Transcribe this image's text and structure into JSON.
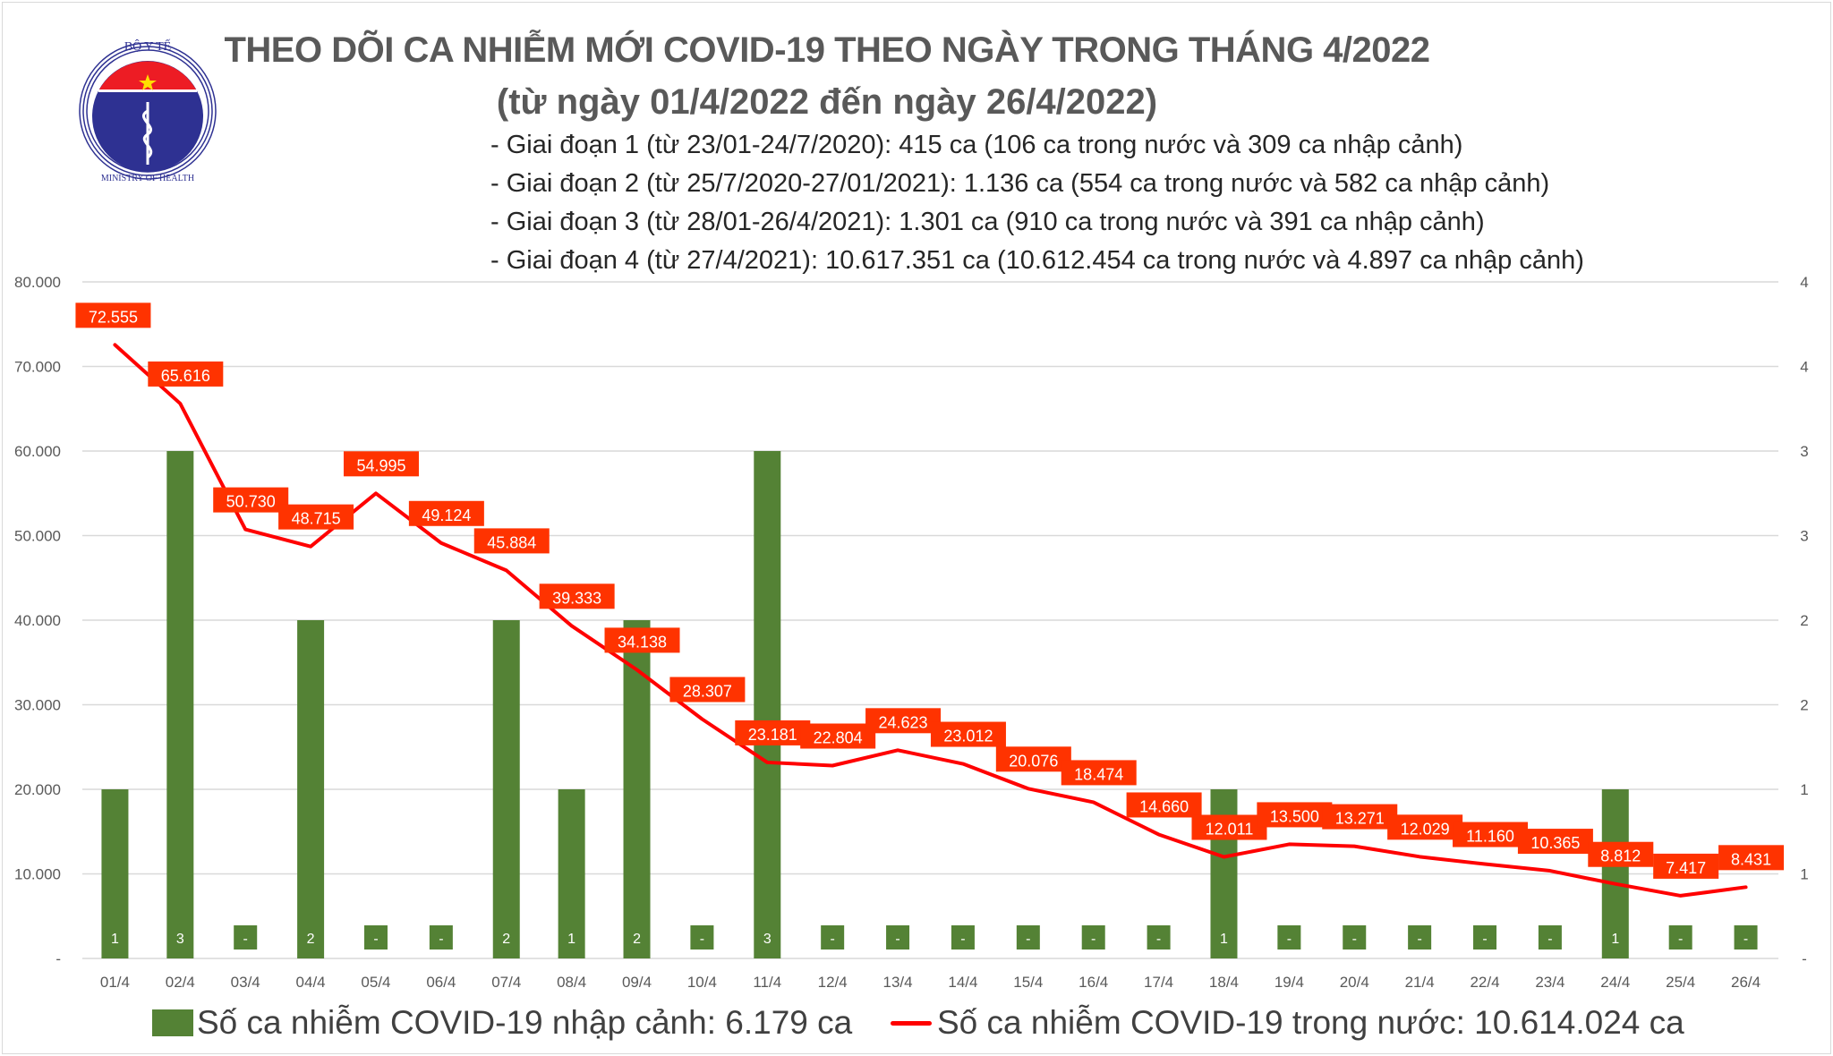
{
  "header": {
    "logo_text_top": "BỘ Y TẾ",
    "logo_text_bottom": "MINISTRY OF HEALTH",
    "title": "THEO DÕI CA NHIỄM MỚI COVID-19 THEO NGÀY TRONG THÁNG 4/2022",
    "subtitle": "(từ ngày 01/4/2022 đến ngày 26/4/2022)",
    "notes": [
      "- Giai đoạn 1 (từ 23/01-24/7/2020): 415 ca (106 ca trong nước và 309 ca nhập cảnh)",
      "- Giai đoạn 2 (từ 25/7/2020-27/01/2021): 1.136 ca (554 ca trong nước và 582 ca nhập cảnh)",
      "- Giai đoạn 3 (từ 28/01-26/4/2021): 1.301 ca (910 ca trong nước và 391 ca nhập cảnh)",
      "- Giai đoạn 4 (từ 27/4/2021): 10.617.351 ca (10.612.454 ca trong nước và 4.897 ca nhập cảnh)"
    ]
  },
  "chart_data": {
    "type": "bar+line",
    "categories": [
      "01/4",
      "02/4",
      "03/4",
      "04/4",
      "05/4",
      "06/4",
      "07/4",
      "08/4",
      "09/4",
      "10/4",
      "11/4",
      "12/4",
      "13/4",
      "14/4",
      "15/4",
      "16/4",
      "17/4",
      "18/4",
      "19/4",
      "20/4",
      "21/4",
      "22/4",
      "23/4",
      "24/4",
      "25/4",
      "26/4"
    ],
    "series": [
      {
        "name": "Số ca nhiễm COVID-19 nhập cảnh: 6.179 ca",
        "type": "bar",
        "axis": "right",
        "values": [
          1,
          3,
          0,
          2,
          0,
          0,
          2,
          1,
          2,
          0,
          3,
          0,
          0,
          0,
          0,
          0,
          0,
          1,
          0,
          0,
          0,
          0,
          0,
          1,
          0,
          0
        ],
        "labels": [
          "1",
          "3",
          "-",
          "2",
          "-",
          "-",
          "2",
          "1",
          "2",
          "-",
          "3",
          "-",
          "-",
          "-",
          "-",
          "-",
          "-",
          "1",
          "-",
          "-",
          "-",
          "-",
          "-",
          "1",
          "-",
          "-"
        ]
      },
      {
        "name": "Số ca nhiễm COVID-19 trong nước: 10.614.024 ca",
        "type": "line",
        "axis": "left",
        "values": [
          72555,
          65616,
          50730,
          48715,
          54995,
          49124,
          45884,
          39333,
          34138,
          28307,
          23181,
          22804,
          24623,
          23012,
          20076,
          18474,
          14660,
          12011,
          13500,
          13271,
          12029,
          11160,
          10365,
          8812,
          7417,
          8431
        ],
        "labels": [
          "72.555",
          "65.616",
          "50.730",
          "48.715",
          "54.995",
          "49.124",
          "45.884",
          "39.333",
          "34.138",
          "28.307",
          "23.181",
          "22.804",
          "24.623",
          "23.012",
          "20.076",
          "18.474",
          "14.660",
          "12.011",
          "13.500",
          "13.271",
          "12.029",
          "11.160",
          "10.365",
          "8.812",
          "7.417",
          "8.431"
        ]
      }
    ],
    "y_left": {
      "range": [
        0,
        80000
      ],
      "ticks": [
        "-",
        "10.000",
        "20.000",
        "30.000",
        "40.000",
        "50.000",
        "60.000",
        "70.000",
        "80.000"
      ]
    },
    "y_right": {
      "range": [
        0,
        4
      ],
      "ticks": [
        "-",
        "1",
        "1",
        "2",
        "2",
        "3",
        "3",
        "4",
        "4"
      ]
    },
    "grid": true,
    "legend_placement": "bottom",
    "colors": {
      "bar": "#548235",
      "line": "#ff0000",
      "label_box": "#ff3300",
      "grid": "#d9d9d9",
      "axis_text": "#595959"
    }
  }
}
